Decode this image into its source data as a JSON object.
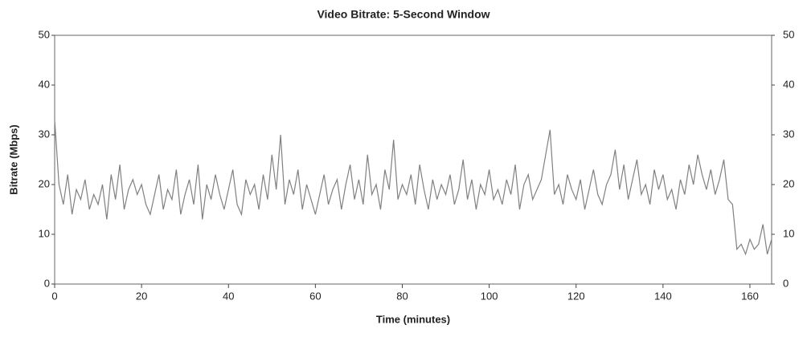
{
  "chart_data": {
    "type": "line",
    "title": "Video Bitrate: 5-Second Window",
    "x_label": "Time (minutes)",
    "y_label": "Bitrate (Mbps)",
    "x": [
      0,
      1,
      2,
      3,
      4,
      5,
      6,
      7,
      8,
      9,
      10,
      11,
      12,
      13,
      14,
      15,
      16,
      17,
      18,
      19,
      20,
      21,
      22,
      23,
      24,
      25,
      26,
      27,
      28,
      29,
      30,
      31,
      32,
      33,
      34,
      35,
      36,
      37,
      38,
      39,
      40,
      41,
      42,
      43,
      44,
      45,
      46,
      47,
      48,
      49,
      50,
      51,
      52,
      53,
      54,
      55,
      56,
      57,
      58,
      59,
      60,
      61,
      62,
      63,
      64,
      65,
      66,
      67,
      68,
      69,
      70,
      71,
      72,
      73,
      74,
      75,
      76,
      77,
      78,
      79,
      80,
      81,
      82,
      83,
      84,
      85,
      86,
      87,
      88,
      89,
      90,
      91,
      92,
      93,
      94,
      95,
      96,
      97,
      98,
      99,
      100,
      101,
      102,
      103,
      104,
      105,
      106,
      107,
      108,
      109,
      110,
      111,
      112,
      113,
      114,
      115,
      116,
      117,
      118,
      119,
      120,
      121,
      122,
      123,
      124,
      125,
      126,
      127,
      128,
      129,
      130,
      131,
      132,
      133,
      134,
      135,
      136,
      137,
      138,
      139,
      140,
      141,
      142,
      143,
      144,
      145,
      146,
      147,
      148,
      149,
      150,
      151,
      152,
      153,
      154,
      155,
      156,
      157,
      158,
      159,
      160,
      161,
      162,
      163,
      164,
      165
    ],
    "series": [
      {
        "name": "Bitrate",
        "color": "#808080",
        "values": [
          33,
          20,
          16,
          22,
          14,
          19,
          17,
          21,
          15,
          18,
          16,
          20,
          13,
          22,
          17,
          24,
          15,
          19,
          21,
          18,
          20,
          16,
          14,
          18,
          22,
          15,
          19,
          17,
          23,
          14,
          18,
          21,
          16,
          24,
          13,
          20,
          17,
          22,
          18,
          15,
          19,
          23,
          16,
          14,
          21,
          18,
          20,
          15,
          22,
          17,
          26,
          19,
          30,
          16,
          21,
          18,
          23,
          15,
          20,
          17,
          14,
          18,
          22,
          16,
          19,
          21,
          15,
          20,
          24,
          17,
          21,
          16,
          26,
          18,
          20,
          15,
          23,
          19,
          29,
          17,
          20,
          18,
          22,
          16,
          24,
          19,
          15,
          21,
          17,
          20,
          18,
          22,
          16,
          19,
          25,
          17,
          21,
          15,
          20,
          18,
          23,
          17,
          19,
          16,
          21,
          18,
          24,
          15,
          20,
          22,
          17,
          19,
          21,
          26,
          31,
          18,
          20,
          16,
          22,
          19,
          17,
          21,
          15,
          19,
          23,
          18,
          16,
          20,
          22,
          27,
          19,
          24,
          17,
          21,
          25,
          18,
          20,
          16,
          23,
          19,
          22,
          17,
          19,
          15,
          21,
          18,
          24,
          20,
          26,
          22,
          19,
          23,
          18,
          21,
          25,
          17,
          16,
          7,
          8,
          6,
          9,
          7,
          8,
          12,
          6,
          9
        ]
      }
    ],
    "xlim": [
      0,
      165
    ],
    "ylim": [
      0,
      50
    ],
    "y2lim": [
      0,
      50
    ],
    "xticks": [
      0,
      20,
      40,
      60,
      80,
      100,
      120,
      140,
      160
    ],
    "yticks": [
      0,
      10,
      20,
      30,
      40,
      50
    ],
    "y2ticks": [
      0,
      10,
      20,
      30,
      40,
      50
    ]
  }
}
